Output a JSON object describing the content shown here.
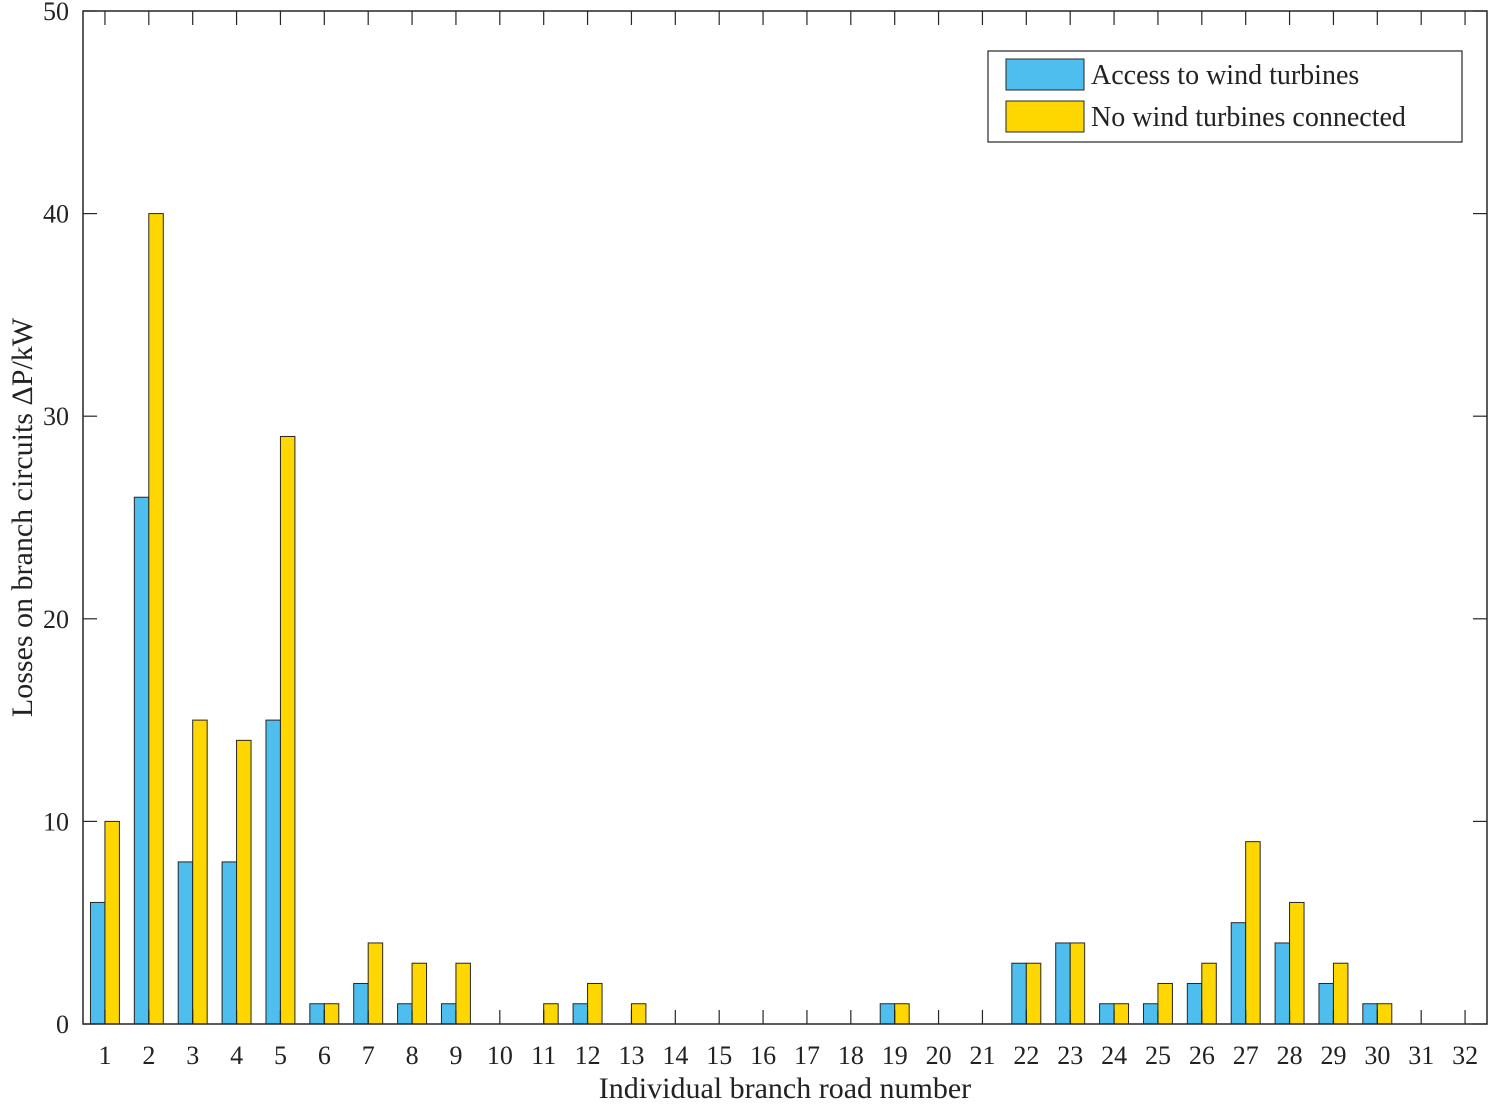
{
  "chart_data": {
    "type": "bar",
    "xlabel": "Individual branch road number",
    "ylabel": "Losses on branch circuits ΔP/kW",
    "ylim": [
      0,
      50
    ],
    "yticks": [
      0,
      10,
      20,
      30,
      40,
      50
    ],
    "categories": [
      "1",
      "2",
      "3",
      "4",
      "5",
      "6",
      "7",
      "8",
      "9",
      "10",
      "11",
      "12",
      "13",
      "14",
      "15",
      "16",
      "17",
      "18",
      "19",
      "20",
      "21",
      "22",
      "23",
      "24",
      "25",
      "26",
      "27",
      "28",
      "29",
      "30",
      "31",
      "32"
    ],
    "series": [
      {
        "name": "Access to wind turbines",
        "color": "#4DBEEE",
        "values": [
          6,
          26,
          8,
          8,
          15,
          1,
          2,
          1,
          1,
          0,
          0,
          1,
          0,
          0,
          0,
          0,
          0,
          0,
          1,
          0,
          0,
          3,
          4,
          1,
          1,
          2,
          5,
          4,
          2,
          1,
          0,
          0
        ]
      },
      {
        "name": "No wind turbines connected",
        "color": "#FFD700",
        "values": [
          10,
          40,
          15,
          14,
          29,
          1,
          4,
          3,
          3,
          0,
          1,
          2,
          1,
          0,
          0,
          0,
          0,
          0,
          1,
          0,
          0,
          3,
          4,
          1,
          2,
          3,
          9,
          6,
          3,
          1,
          0,
          0
        ]
      }
    ],
    "legend_position": "top-right",
    "grid": false,
    "box": true
  }
}
